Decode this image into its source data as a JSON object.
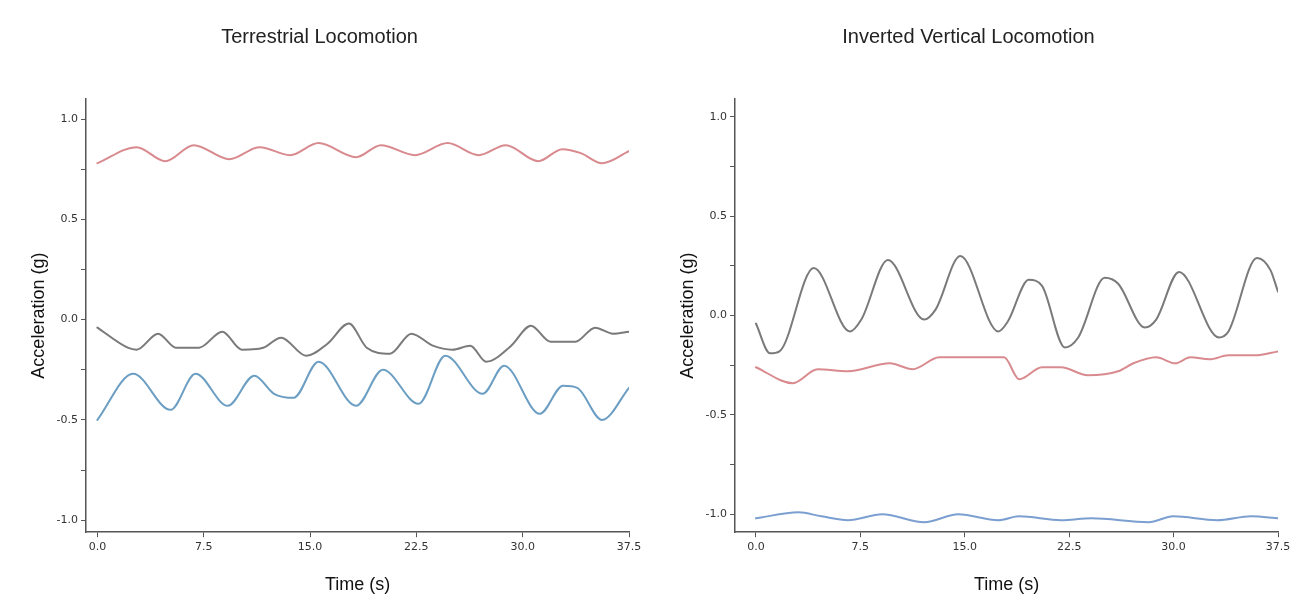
{
  "chart_data": [
    {
      "type": "line",
      "title": "Terrestrial Locomotion",
      "xlabel": "Time (s)",
      "ylabel": "Acceleration (g)",
      "xlim": [
        -0.8,
        37.5
      ],
      "xticks": [
        {
          "value": 0,
          "label": "0.0"
        },
        7.5,
        {
          "value": 15,
          "label": "15.0"
        },
        22.5,
        {
          "value": 30,
          "label": "30.0"
        },
        37.5
      ],
      "ylim": [
        -1.06,
        1.1
      ],
      "yticks": [
        {
          "value": -1,
          "label": "-1.0"
        },
        {
          "value": -0.75,
          "label": null
        },
        {
          "value": -0.5,
          "label": "-0.5"
        },
        {
          "value": -0.25,
          "label": null
        },
        {
          "value": 0,
          "label": "0.0"
        },
        {
          "value": 0.25,
          "label": null
        },
        {
          "value": 0.5,
          "label": "0.5"
        },
        {
          "value": 0.75,
          "label": null
        },
        {
          "value": 1,
          "label": "1.0"
        }
      ],
      "grid": false,
      "legend": false,
      "marker": "none",
      "line_style": "solid",
      "series": [
        {
          "color": "#d98a8e",
          "x": [
            0,
            2.77,
            4.78,
            6.8,
            9.31,
            11.45,
            13.59,
            15.6,
            18.25,
            20.0,
            22.4,
            24.7,
            26.9,
            28.8,
            31.1,
            32.8,
            34.1,
            35.6,
            37.5
          ],
          "values": [
            0.78,
            0.86,
            0.79,
            0.87,
            0.8,
            0.86,
            0.82,
            0.88,
            0.81,
            0.87,
            0.82,
            0.88,
            0.82,
            0.87,
            0.79,
            0.85,
            0.83,
            0.78,
            0.84
          ]
        },
        {
          "color": "#7a7a7a",
          "x": [
            0,
            2.14,
            2.77,
            4.28,
            5.54,
            7.17,
            8.81,
            10.19,
            11.7,
            12.96,
            14.72,
            16.23,
            17.74,
            19.0,
            20.64,
            22.15,
            23.66,
            25.04,
            26.3,
            27.43,
            29.19,
            30.58,
            31.96,
            33.72,
            35.11,
            36.37,
            37.5
          ],
          "values": [
            -0.04,
            -0.14,
            -0.15,
            -0.07,
            -0.14,
            -0.14,
            -0.06,
            -0.15,
            -0.14,
            -0.09,
            -0.18,
            -0.12,
            -0.02,
            -0.14,
            -0.17,
            -0.07,
            -0.13,
            -0.15,
            -0.13,
            -0.21,
            -0.13,
            -0.03,
            -0.11,
            -0.11,
            -0.04,
            -0.07,
            -0.06
          ]
        },
        {
          "color": "#6b9ec2",
          "x": [
            0,
            2.52,
            5.16,
            6.92,
            9.19,
            11.07,
            12.46,
            13.84,
            15.6,
            18.25,
            20.14,
            22.65,
            24.54,
            27.18,
            28.69,
            31.21,
            32.85,
            33.85,
            35.6,
            37.5
          ],
          "values": [
            -0.5,
            -0.27,
            -0.45,
            -0.27,
            -0.43,
            -0.28,
            -0.37,
            -0.39,
            -0.21,
            -0.43,
            -0.25,
            -0.42,
            -0.18,
            -0.37,
            -0.23,
            -0.47,
            -0.33,
            -0.34,
            -0.5,
            -0.34
          ]
        }
      ]
    },
    {
      "type": "line",
      "title": "Inverted Vertical Locomotion",
      "xlabel": "Time (s)",
      "ylabel": "Acceleration (g)",
      "xlim": [
        -1.5,
        37.5
      ],
      "xticks": [
        {
          "value": 0,
          "label": "0.0"
        },
        7.5,
        {
          "value": 15,
          "label": "15.0"
        },
        22.5,
        {
          "value": 30,
          "label": "30.0"
        },
        37.5
      ],
      "ylim": [
        -1.09,
        1.09
      ],
      "yticks": [
        {
          "value": -1,
          "label": "-1.0"
        },
        {
          "value": -0.75,
          "label": null
        },
        {
          "value": -0.5,
          "label": "-0.5"
        },
        {
          "value": -0.25,
          "label": null
        },
        {
          "value": 0,
          "label": "0.0"
        },
        {
          "value": 0.25,
          "label": null
        },
        {
          "value": 0.5,
          "label": "0.5"
        },
        {
          "value": 0.75,
          "label": null
        },
        {
          "value": 1,
          "label": "1.0"
        }
      ],
      "grid": false,
      "legend": false,
      "marker": "none",
      "line_style": "solid",
      "series": [
        {
          "color": "#7a7a7a",
          "x": [
            0,
            1.01,
            1.69,
            4.15,
            6.75,
            7.57,
            9.48,
            12.08,
            12.9,
            14.68,
            17.41,
            18.09,
            19.6,
            20.55,
            22.19,
            23.15,
            25.06,
            26.02,
            27.93,
            28.75,
            30.39,
            33.26,
            33.94,
            35.99,
            36.95,
            37.5
          ],
          "values": [
            -0.04,
            -0.19,
            -0.18,
            0.24,
            -0.08,
            -0.02,
            0.28,
            -0.02,
            0.03,
            0.3,
            -0.08,
            -0.03,
            0.18,
            0.15,
            -0.16,
            -0.11,
            0.19,
            0.16,
            -0.06,
            -0.02,
            0.22,
            -0.11,
            -0.08,
            0.29,
            0.23,
            0.12
          ]
        },
        {
          "color": "#d98a8e",
          "x": [
            0,
            2.65,
            4.43,
            6.61,
            9.62,
            11.26,
            13.17,
            16.18,
            17.82,
            18.91,
            20.55,
            21.92,
            23.83,
            26.02,
            27.11,
            28.75,
            30.12,
            31.21,
            32.58,
            33.94,
            35.86,
            37.5
          ],
          "values": [
            -0.26,
            -0.34,
            -0.27,
            -0.28,
            -0.24,
            -0.27,
            -0.21,
            -0.21,
            -0.21,
            -0.32,
            -0.26,
            -0.26,
            -0.3,
            -0.28,
            -0.24,
            -0.21,
            -0.24,
            -0.21,
            -0.22,
            -0.2,
            -0.2,
            -0.18
          ]
        },
        {
          "color": "#7b9fd0",
          "x": [
            0,
            3.06,
            4.7,
            6.61,
            9.07,
            12.08,
            14.54,
            17.41,
            18.91,
            21.92,
            24.1,
            28.2,
            29.98,
            33.12,
            35.58,
            37.5
          ],
          "values": [
            -1.02,
            -0.99,
            -1.01,
            -1.03,
            -1.0,
            -1.04,
            -1.0,
            -1.03,
            -1.01,
            -1.03,
            -1.02,
            -1.04,
            -1.01,
            -1.03,
            -1.01,
            -1.02
          ]
        }
      ]
    }
  ]
}
